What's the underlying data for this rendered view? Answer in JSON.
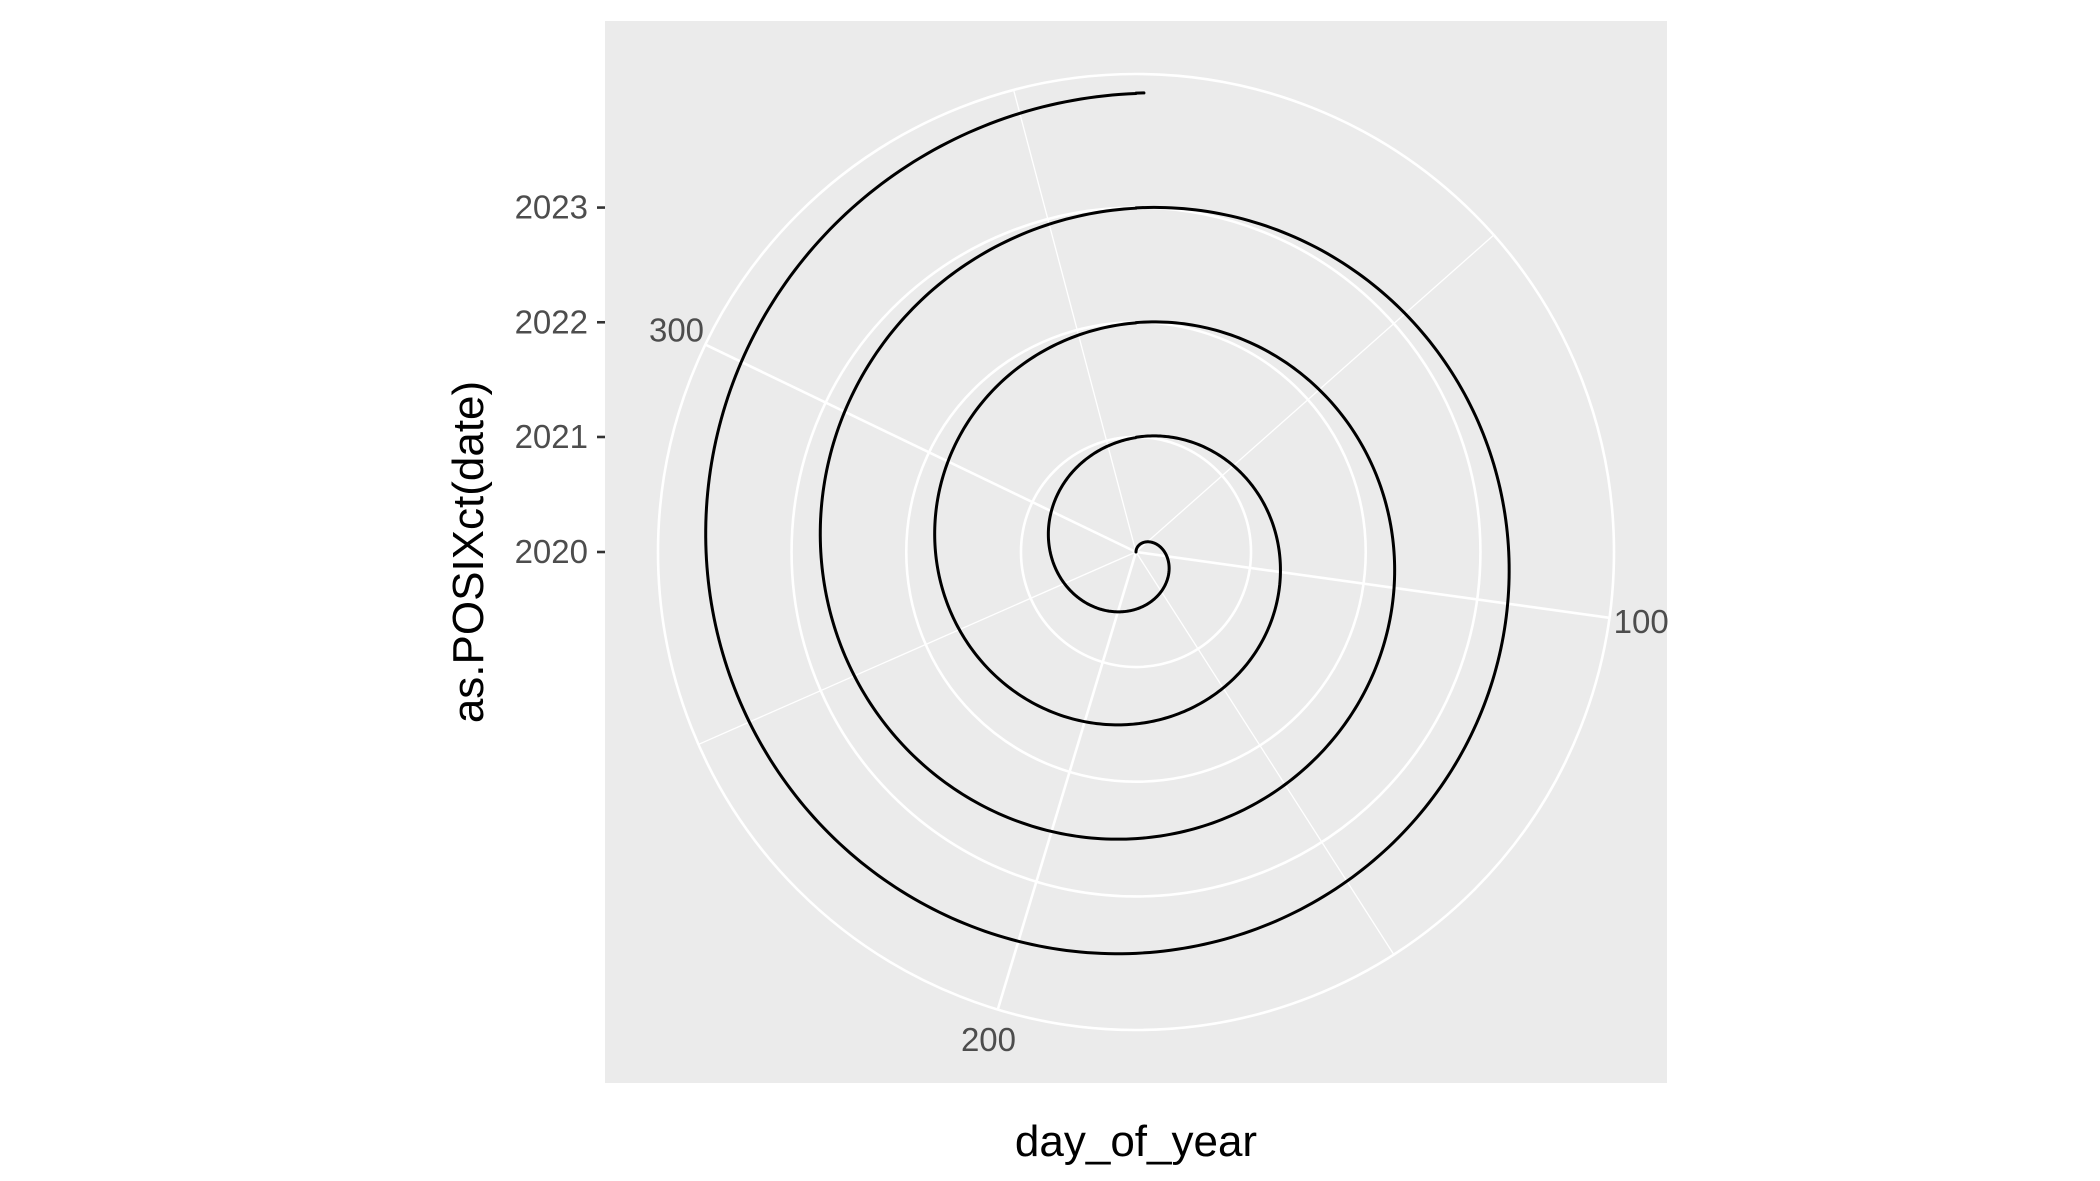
{
  "chart_data": {
    "type": "line",
    "coord": "polar",
    "title": "",
    "xlabel": "day_of_year",
    "ylabel": "as.POSIXct(date)",
    "theta": {
      "variable": "day_of_year",
      "range": [
        1,
        365
      ],
      "ticks": [
        100,
        200,
        300
      ],
      "tick_labels": [
        "100",
        "200",
        "300"
      ],
      "minor_ticks": [
        50,
        150,
        250,
        350
      ]
    },
    "r": {
      "variable": "as.POSIXct(date)",
      "range": [
        "2020-01-01",
        "2024-03-01"
      ],
      "ticks": [
        "2020-01-01",
        "2021-01-01",
        "2022-01-01",
        "2023-01-01"
      ],
      "tick_labels": [
        "2020",
        "2021",
        "2022",
        "2023"
      ]
    },
    "series": [
      {
        "x_start": 1,
        "x_end": 365,
        "y_start": "2020-01-01",
        "y_end": "2024-01-01",
        "step_days": 1
      }
    ],
    "grid": true,
    "legend": "none",
    "colors": {
      "panel": "#ebebeb",
      "grid": "#ffffff",
      "line": "#000000",
      "tick_text": "#4d4d4d"
    }
  }
}
